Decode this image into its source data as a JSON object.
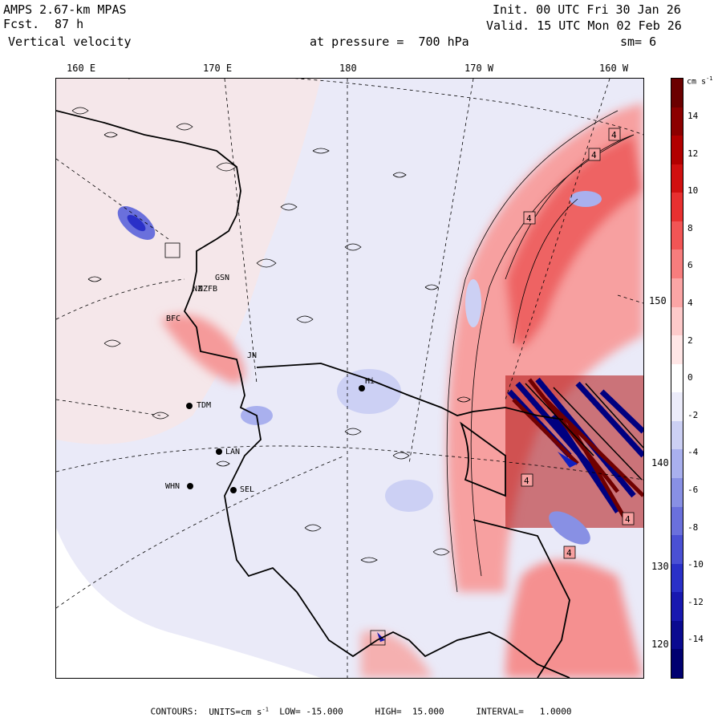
{
  "header": {
    "model": "AMPS 2.67-km MPAS",
    "fcst_label": "Fcst.",
    "fcst_hours": "87 h",
    "field": "Vertical velocity",
    "level": "at pressure =  700 hPa",
    "init": "Init. 00 UTC Fri 30 Jan 26",
    "valid": "Valid. 15 UTC Mon 02 Feb 26",
    "smoothing": "sm= 6"
  },
  "longitudes": [
    "160 E",
    "170 E",
    "180",
    "170 W",
    "160 W"
  ],
  "latitudes": [
    "150 W",
    "140 W",
    "130 W",
    "120 W"
  ],
  "stations": [
    "GSN",
    "NZFB",
    "BFC",
    "JN",
    "TDM",
    "LAN",
    "WHN",
    "SEL",
    "Hi",
    "NZ"
  ],
  "contour_labels": [
    "4",
    "4",
    "4",
    "4",
    "4",
    "4"
  ],
  "colorbar": {
    "units": "cm s",
    "units_exp": "-1",
    "ticks": [
      "14",
      "12",
      "10",
      "8",
      "6",
      "4",
      "2",
      "0",
      "-2",
      "-4",
      "-6",
      "-8",
      "-10",
      "-12",
      "-14"
    ],
    "colors": [
      "#6b0000",
      "#8c0000",
      "#b20000",
      "#d01010",
      "#e83030",
      "#f25555",
      "#f77d7d",
      "#fba5a5",
      "#fdcaca",
      "#ffe6e6",
      "#ffffff",
      "#ececfa",
      "#ccd0f4",
      "#a9b0ee",
      "#8890e4",
      "#6a70dc",
      "#4a50d4",
      "#2a30c8",
      "#1818b0",
      "#0a0a90",
      "#000070"
    ]
  },
  "footer": {
    "contours": "CONTOURS:",
    "units": "UNITS=cm s",
    "units_exp": "-1",
    "low": "LOW= -15.000",
    "high": "HIGH=  15.000",
    "interval": "INTERVAL=   1.0000"
  }
}
